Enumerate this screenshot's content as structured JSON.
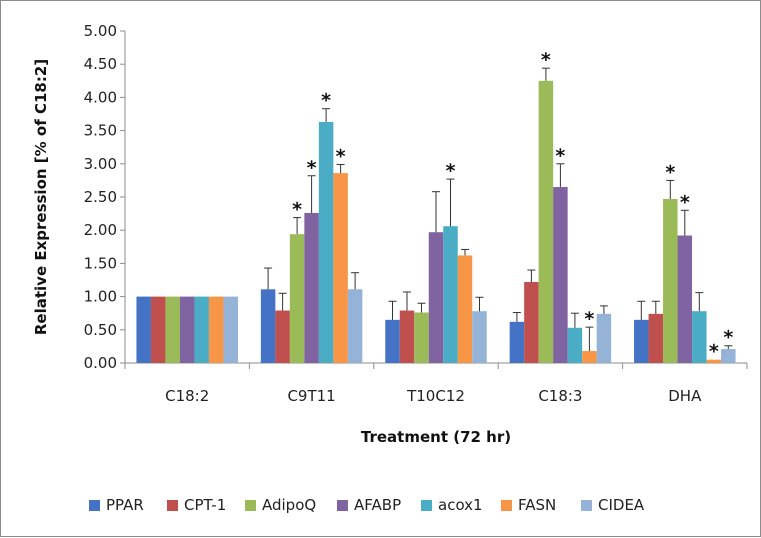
{
  "chart_data": {
    "type": "bar",
    "xlabel": "Treatment (72 hr)",
    "ylabel": "Relative Expression [% of C18:2]",
    "ylim": [
      0,
      5
    ],
    "ytick_step": 0.5,
    "yticks": [
      "0.00",
      "0.50",
      "1.00",
      "1.50",
      "2.00",
      "2.50",
      "3.00",
      "3.50",
      "4.00",
      "4.50",
      "5.00"
    ],
    "grid": false,
    "legend_position": "bottom",
    "categories": [
      "C18:2",
      "C9T11",
      "T10C12",
      "C18:3",
      "DHA"
    ],
    "series": [
      {
        "name": "PPAR",
        "color": "#4472C4",
        "values": [
          1.0,
          1.11,
          0.65,
          0.62,
          0.65
        ],
        "errors": [
          0,
          0.32,
          0.28,
          0.14,
          0.28
        ],
        "sig": [
          false,
          false,
          false,
          false,
          false
        ]
      },
      {
        "name": "CPT-1",
        "color": "#C0504D",
        "values": [
          1.0,
          0.79,
          0.79,
          1.22,
          0.74
        ],
        "errors": [
          0,
          0.26,
          0.28,
          0.18,
          0.19
        ],
        "sig": [
          false,
          false,
          false,
          false,
          false
        ]
      },
      {
        "name": "AdipoQ",
        "color": "#9BBB59",
        "values": [
          1.0,
          1.94,
          0.76,
          4.25,
          2.47
        ],
        "errors": [
          0,
          0.25,
          0.14,
          0.19,
          0.28
        ],
        "sig": [
          false,
          true,
          false,
          true,
          true
        ]
      },
      {
        "name": "AFABP",
        "color": "#8064A2",
        "values": [
          1.0,
          2.26,
          1.97,
          2.65,
          1.92
        ],
        "errors": [
          0,
          0.56,
          0.61,
          0.35,
          0.38
        ],
        "sig": [
          false,
          true,
          false,
          true,
          true
        ]
      },
      {
        "name": "acox1",
        "color": "#4BACC6",
        "values": [
          1.0,
          3.63,
          2.06,
          0.53,
          0.78
        ],
        "errors": [
          0,
          0.2,
          0.71,
          0.22,
          0.28
        ],
        "sig": [
          false,
          true,
          true,
          false,
          false
        ]
      },
      {
        "name": "FASN",
        "color": "#F79646",
        "values": [
          1.0,
          2.86,
          1.62,
          0.18,
          0.05
        ],
        "errors": [
          0,
          0.13,
          0.09,
          0.36,
          0.0
        ],
        "sig": [
          false,
          true,
          false,
          true,
          true
        ]
      },
      {
        "name": "CIDEA",
        "color": "#95B3D7",
        "values": [
          1.0,
          1.11,
          0.78,
          0.74,
          0.21
        ],
        "errors": [
          0,
          0.25,
          0.21,
          0.12,
          0.05
        ],
        "sig": [
          false,
          false,
          false,
          false,
          true
        ]
      }
    ],
    "significance_marker": "*"
  }
}
